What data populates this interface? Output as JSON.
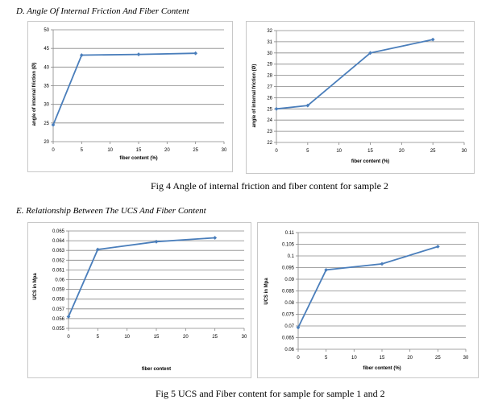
{
  "section_d": {
    "heading": "D.  Angle Of Internal Friction And Fiber Content"
  },
  "fig4": {
    "caption": "Fig 4 Angle of internal friction and fiber content for sample 2"
  },
  "section_e": {
    "heading": "E.  Relationship Between The UCS And Fiber Content"
  },
  "fig5": {
    "caption": "Fig 5 UCS and Fiber content for sample for sample 1 and 2"
  },
  "colors": {
    "series": "#4a7ebb",
    "grid": "#868686",
    "frame": "#c8c8c8"
  },
  "chart_data": [
    {
      "id": "chart1",
      "type": "line",
      "title": "",
      "xlabel": "fiber content (%)",
      "ylabel": "angle of internal friction (Ø)",
      "x_ticks": [
        0,
        5,
        10,
        15,
        20,
        25,
        30
      ],
      "y_ticks": [
        20,
        25,
        30,
        35,
        40,
        45,
        50
      ],
      "y_tick_labels": [
        "20",
        "25",
        "30",
        "35",
        "40",
        "45",
        "50"
      ],
      "xlim": [
        0,
        30
      ],
      "ylim": [
        20,
        50
      ],
      "grid": "horizontal",
      "series": [
        {
          "x": [
            0,
            5,
            15,
            25
          ],
          "values": [
            24.5,
            43.2,
            43.4,
            43.7
          ]
        }
      ]
    },
    {
      "id": "chart2",
      "type": "line",
      "title": "",
      "xlabel": "fiber content (%)",
      "ylabel": "angle of internal friction (Ø)",
      "x_ticks": [
        0,
        5,
        10,
        15,
        20,
        25,
        30
      ],
      "y_ticks": [
        22,
        23,
        24,
        25,
        26,
        27,
        28,
        29,
        30,
        31,
        32
      ],
      "y_tick_labels": [
        "22",
        "23",
        "24",
        "25",
        "26",
        "27",
        "28",
        "29",
        "30",
        "31",
        "32"
      ],
      "xlim": [
        0,
        30
      ],
      "ylim": [
        22,
        32
      ],
      "grid": "horizontal",
      "series": [
        {
          "x": [
            0,
            5,
            15,
            25
          ],
          "values": [
            25.0,
            25.3,
            30.0,
            31.2
          ]
        }
      ]
    },
    {
      "id": "chart3",
      "type": "line",
      "title": "",
      "xlabel": "fiber content",
      "ylabel": "UCS in Mpa",
      "x_ticks": [
        0,
        5,
        10,
        15,
        20,
        25,
        30
      ],
      "y_ticks": [
        0.055,
        0.056,
        0.057,
        0.058,
        0.059,
        0.06,
        0.061,
        0.062,
        0.063,
        0.064,
        0.065
      ],
      "y_tick_labels": [
        "0.055",
        "0.056",
        "0.057",
        "0.058",
        "0.059",
        "0.06",
        "0.061",
        "0.062",
        "0.063",
        "0.064",
        "0.065"
      ],
      "xlim": [
        0,
        30
      ],
      "ylim": [
        0.055,
        0.065
      ],
      "grid": "horizontal",
      "series": [
        {
          "x": [
            0,
            5,
            15,
            25
          ],
          "values": [
            0.0562,
            0.0631,
            0.0639,
            0.0643
          ]
        }
      ]
    },
    {
      "id": "chart4",
      "type": "line",
      "title": "",
      "xlabel": "fiber content (%)",
      "ylabel": "UCS in Mpa",
      "x_ticks": [
        0,
        5,
        10,
        15,
        20,
        25,
        30
      ],
      "y_ticks": [
        0.06,
        0.065,
        0.07,
        0.075,
        0.08,
        0.085,
        0.09,
        0.095,
        0.1,
        0.105,
        0.11
      ],
      "y_tick_labels": [
        "0.06",
        "0.065",
        "0.07",
        "0.075",
        "0.08",
        "0.085",
        "0.09",
        "0.095",
        "0.1",
        "0.105",
        "0.11"
      ],
      "xlim": [
        0,
        30
      ],
      "ylim": [
        0.06,
        0.11
      ],
      "grid": "horizontal",
      "series": [
        {
          "x": [
            0,
            5,
            15,
            25
          ],
          "values": [
            0.0693,
            0.094,
            0.0966,
            0.104
          ]
        }
      ]
    }
  ]
}
